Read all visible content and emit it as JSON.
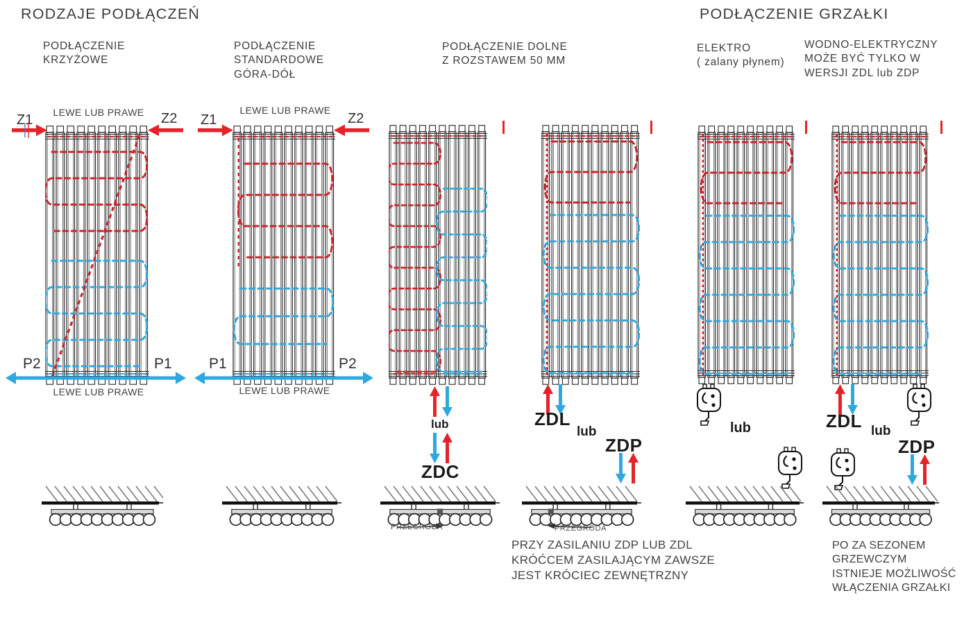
{
  "titles": {
    "left": "RODZAJE PODŁĄCZEŃ",
    "right": "PODŁĄCZENIE GRZAŁKI"
  },
  "colors": {
    "red": "#e32329",
    "coil_red": "#c9252c",
    "blue": "#2fa8df",
    "line": "#262626",
    "text": "#3e3e3e"
  },
  "diagrams": {
    "krzyzowe": {
      "title": "PODŁĄCZENIE\nKRZYŻOWE",
      "top_label": "LEWE LUB PRAWE",
      "bottom_label": "LEWE LUB PRAWE",
      "z_left": "Z1",
      "z_right": "Z2",
      "p_left": "P2",
      "p_right": "P1",
      "flow": "cross"
    },
    "standardowe": {
      "title": "PODŁĄCZENIE\nSTANDARDOWE\nGÓRA-DÓŁ",
      "top_label": "LEWE LUB PRAWE",
      "bottom_label": "LEWE LUB PRAWE",
      "z_left": "Z1",
      "z_right": "Z2",
      "p_left": "P1",
      "p_right": "P2",
      "flow": "top-down"
    },
    "dolne": {
      "title": "PODŁĄCZENIE DOLNE\nZ ROZSTAWEM 50 MM",
      "flow_left": "split-half",
      "flow_right": "left-feed",
      "zdc_label": "ZDC",
      "zdc_lub": "lub",
      "zdl_label": "ZDL",
      "lub": "lub",
      "zdp_label": "ZDP",
      "przegroda": "PRZEGRODA",
      "note": "PRZY ZASILANIU ZDP LUB ZDL\nKRÓĆCEM ZASILAJĄCYM ZAWSZE\nJEST KRÓCIEC ZEWNĘTRZNY"
    },
    "elektro": {
      "title": "ELEKTRO\n( zalany płynem)",
      "lub": "lub",
      "flow": "left-feed"
    },
    "wodno": {
      "title": "WODNO-ELEKTRYCZNY\nMOŻE BYĆ TYLKO W\nWERSJI ZDL lub ZDP",
      "zdl_label": "ZDL",
      "lub": "lub",
      "zdp_label": "ZDP",
      "flow": "left-feed",
      "note": "PO ZA SEZONEM\nGRZEWCZYM\nISTNIEJE MOŻLIWOŚĆ\nWŁĄCZENIA GRZAŁKI"
    }
  }
}
